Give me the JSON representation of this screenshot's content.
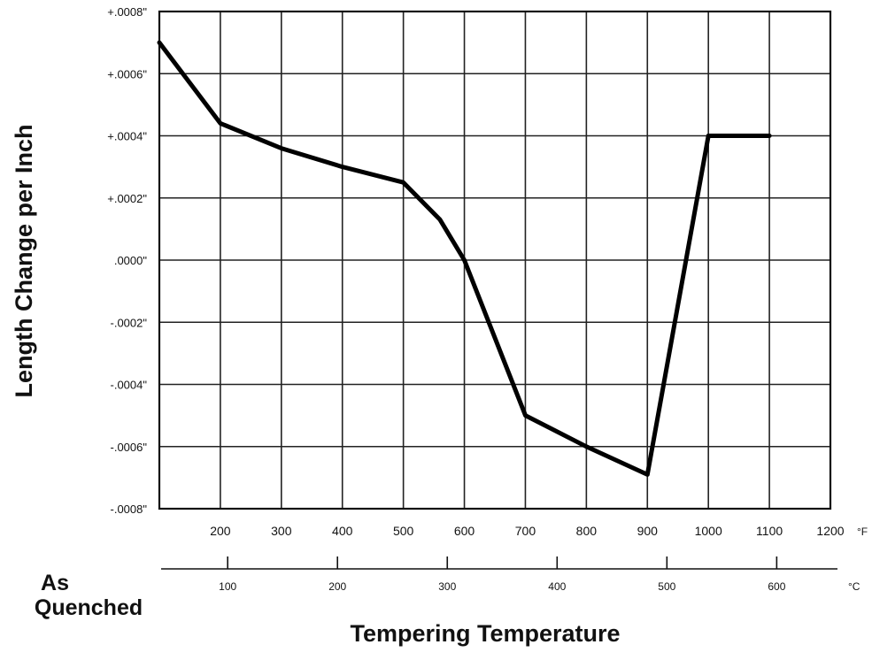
{
  "chart_data": {
    "type": "line",
    "title": "",
    "ylabel": "Length Change per Inch",
    "xlabel": "Tempering Temperature",
    "x_start_label": "As Quenched",
    "x_unit_f": "°F",
    "x_unit_c": "°C",
    "xlim_f": [
      100,
      1200
    ],
    "ylim": [
      -0.0008,
      0.0008
    ],
    "grid": true,
    "y_ticks": [
      {
        "value": 0.0008,
        "label": "+.0008\""
      },
      {
        "value": 0.0006,
        "label": "+.0006\""
      },
      {
        "value": 0.0004,
        "label": "+.0004\""
      },
      {
        "value": 0.0002,
        "label": "+.0002\""
      },
      {
        "value": 0.0,
        "label": ".0000\""
      },
      {
        "value": -0.0002,
        "label": "-.0002\""
      },
      {
        "value": -0.0004,
        "label": "-.0004\""
      },
      {
        "value": -0.0006,
        "label": "-.0006\""
      },
      {
        "value": -0.0008,
        "label": "-.0008\""
      }
    ],
    "x_ticks_f": [
      200,
      300,
      400,
      500,
      600,
      700,
      800,
      900,
      1000,
      1100,
      1200
    ],
    "x_ticks_c": [
      100,
      200,
      300,
      400,
      500,
      600
    ],
    "series": [
      {
        "x": [
          100,
          200,
          300,
          400,
          500,
          560,
          600,
          700,
          800,
          900,
          1000,
          1100
        ],
        "y": [
          0.0007,
          0.00044,
          0.00036,
          0.0003,
          0.00025,
          0.00013,
          0.0,
          -0.0005,
          -0.0006,
          -0.00069,
          0.0004,
          0.0004
        ]
      }
    ]
  }
}
